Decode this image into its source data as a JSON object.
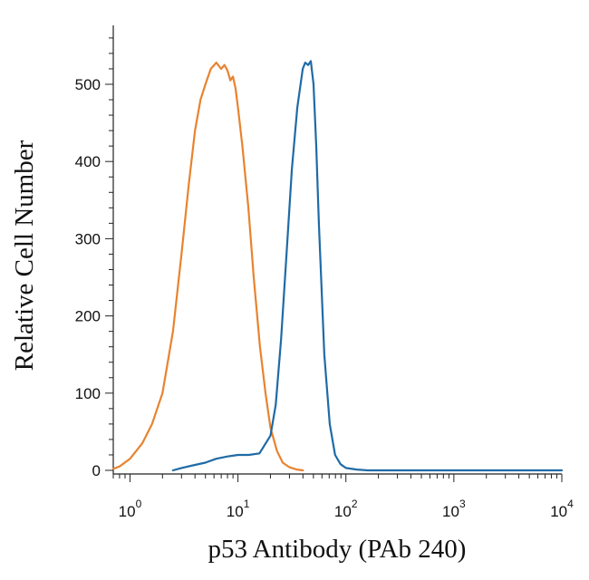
{
  "chart_data": {
    "type": "line",
    "title": "",
    "xlabel": "p53 Antibody (PAb 240)",
    "ylabel": "Relative Cell Number",
    "x_scale": "log",
    "xlim": [
      0.7,
      10000
    ],
    "ylim": [
      0,
      580
    ],
    "x_ticks": [
      {
        "value": 1,
        "base": "10",
        "exp": "0"
      },
      {
        "value": 10,
        "base": "10",
        "exp": "1"
      },
      {
        "value": 100,
        "base": "10",
        "exp": "2"
      },
      {
        "value": 1000,
        "base": "10",
        "exp": "3"
      },
      {
        "value": 10000,
        "base": "10",
        "exp": "4"
      }
    ],
    "y_ticks": [
      0,
      100,
      200,
      300,
      400,
      500
    ],
    "grid": false,
    "series": [
      {
        "color": "#E8832F",
        "x": [
          0.7,
          0.8,
          1.0,
          1.3,
          1.6,
          2.0,
          2.5,
          3.0,
          3.5,
          4.0,
          4.5,
          5.0,
          5.6,
          6.3,
          7.0,
          7.5,
          8.0,
          8.5,
          9.0,
          9.5,
          10.0,
          11.0,
          12.5,
          14.0,
          16.0,
          18.0,
          20.0,
          23.0,
          26.0,
          30.0,
          35.0,
          40.0
        ],
        "y": [
          2,
          5,
          15,
          35,
          60,
          100,
          180,
          280,
          370,
          440,
          480,
          500,
          520,
          528,
          520,
          525,
          518,
          505,
          510,
          495,
          470,
          420,
          340,
          250,
          160,
          100,
          55,
          25,
          10,
          4,
          1,
          0
        ]
      },
      {
        "color": "#1F6BA6",
        "x": [
          2.5,
          3.0,
          4.0,
          5.0,
          6.3,
          8.0,
          10.0,
          12.6,
          15.8,
          20.0,
          22.4,
          25.1,
          28.2,
          31.6,
          35.5,
          39.8,
          42.0,
          44.7,
          47.3,
          50.1,
          53.1,
          56.2,
          63.1,
          70.8,
          79.4,
          89.1,
          100.0,
          125.9,
          158.5,
          10000.0
        ],
        "y": [
          0,
          3,
          7,
          10,
          15,
          18,
          20,
          20,
          22,
          45,
          85,
          170,
          280,
          390,
          470,
          520,
          528,
          525,
          530,
          500,
          420,
          320,
          150,
          60,
          20,
          8,
          3,
          1,
          0,
          0
        ]
      }
    ]
  }
}
